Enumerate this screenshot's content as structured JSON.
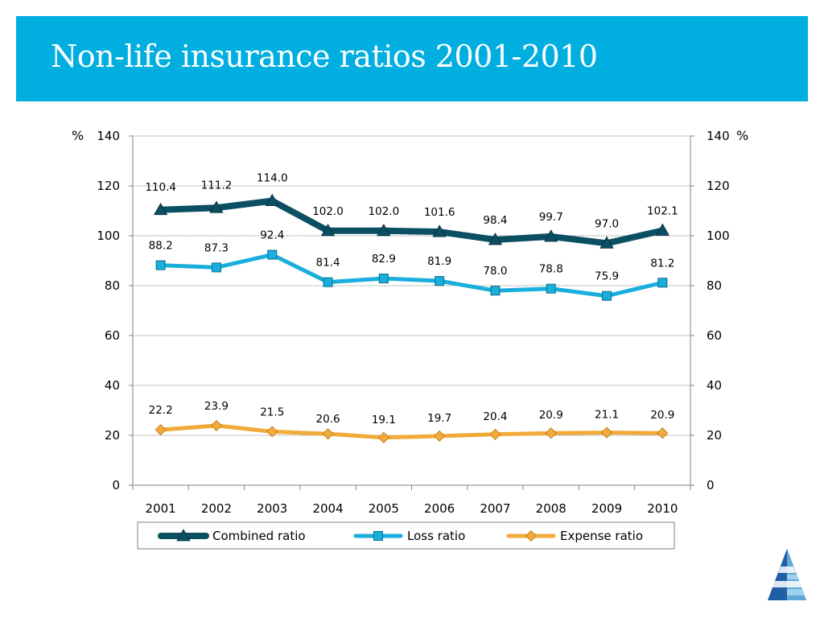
{
  "header": {
    "title": "Non-life insurance ratios 2001-2010"
  },
  "chart_data": {
    "type": "line",
    "title": "",
    "x": [
      "2001",
      "2002",
      "2003",
      "2004",
      "2005",
      "2006",
      "2007",
      "2008",
      "2009",
      "2010"
    ],
    "ylim": [
      0,
      140
    ],
    "yticks": [
      0,
      20,
      40,
      60,
      80,
      100,
      120,
      140
    ],
    "left_axis_unit": "%",
    "right_axis_unit": "%",
    "grid": true,
    "legend_position": "bottom",
    "series": [
      {
        "name": "Combined ratio",
        "color": "#0b4f63",
        "marker": "triangle",
        "values": [
          110.4,
          111.2,
          114.0,
          102.0,
          102.0,
          101.6,
          98.4,
          99.7,
          97.0,
          102.1
        ],
        "labels": [
          "110.4",
          "111.2",
          "114.0",
          "102.0",
          "102.0",
          "101.6",
          "98.4",
          "99.7",
          "97.0",
          "102.1"
        ]
      },
      {
        "name": "Loss ratio",
        "color": "#1aaedc",
        "marker": "square",
        "values": [
          88.2,
          87.3,
          92.4,
          81.4,
          82.9,
          81.9,
          78.0,
          78.8,
          75.9,
          81.2
        ],
        "labels": [
          "88.2",
          "87.3",
          "92.4",
          "81.4",
          "82.9",
          "81.9",
          "78.0",
          "78.8",
          "75.9",
          "81.2"
        ]
      },
      {
        "name": "Expense ratio",
        "color": "#f2aa3a",
        "marker": "diamond",
        "values": [
          22.2,
          23.9,
          21.5,
          20.6,
          19.1,
          19.7,
          20.4,
          20.9,
          21.1,
          20.9
        ],
        "labels": [
          "22.2",
          "23.9",
          "21.5",
          "20.6",
          "19.1",
          "19.7",
          "20.4",
          "20.9",
          "21.1",
          "20.9"
        ]
      }
    ]
  },
  "logo": {
    "icon": "pyramid-logo-icon",
    "colors": [
      "#1f5fa6",
      "#5fa8d8",
      "#9fd0ee"
    ]
  }
}
